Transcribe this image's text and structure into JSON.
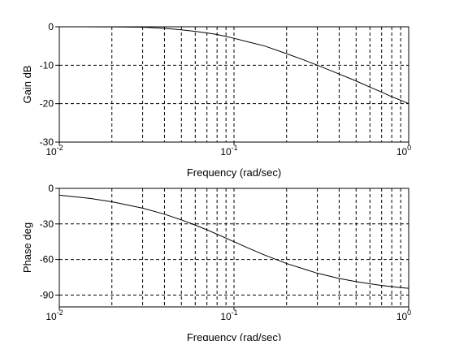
{
  "chart_data": [
    {
      "type": "line",
      "xscale": "log",
      "xlim": [
        0.01,
        1
      ],
      "ylim": [
        -30,
        0
      ],
      "xlabel": "Frequency (rad/sec)",
      "ylabel": "Gain dB",
      "xticks": [
        {
          "base": "10",
          "exp": "-2",
          "value": 0.01
        },
        {
          "base": "10",
          "exp": "-1",
          "value": 0.1
        },
        {
          "base": "10",
          "exp": "0",
          "value": 1
        }
      ],
      "yticks": [
        {
          "label": "0",
          "value": 0
        },
        {
          "label": "-10",
          "value": -10
        },
        {
          "label": "-20",
          "value": -20
        },
        {
          "label": "-30",
          "value": -30
        }
      ],
      "grid": true,
      "series": [
        {
          "x": [
            0.014,
            0.02,
            0.03,
            0.04,
            0.05,
            0.06,
            0.07,
            0.08,
            0.09,
            0.1,
            0.12,
            0.15,
            0.2,
            0.25,
            0.3,
            0.4,
            0.5,
            0.6,
            0.7,
            0.8,
            0.9,
            1.0
          ],
          "y": [
            -0.01,
            -0.02,
            -0.1,
            -0.4,
            -0.8,
            -1.2,
            -1.6,
            -2.0,
            -2.5,
            -3.0,
            -3.9,
            -5.0,
            -7.0,
            -8.6,
            -10.0,
            -12.3,
            -14.1,
            -15.7,
            -17.0,
            -18.2,
            -19.1,
            -20.0
          ]
        }
      ]
    },
    {
      "type": "line",
      "xscale": "log",
      "xlim": [
        0.01,
        1
      ],
      "ylim": [
        -100,
        0
      ],
      "xlabel": "Frequency (rad/sec)",
      "ylabel": "Phase deg",
      "xticks": [
        {
          "base": "10",
          "exp": "-2",
          "value": 0.01
        },
        {
          "base": "10",
          "exp": "-1",
          "value": 0.1
        },
        {
          "base": "10",
          "exp": "0",
          "value": 1
        }
      ],
      "yticks": [
        {
          "label": "0",
          "value": 0
        },
        {
          "label": "-30",
          "value": -30
        },
        {
          "label": "-60",
          "value": -60
        },
        {
          "label": "-90",
          "value": -90
        }
      ],
      "grid": true,
      "series": [
        {
          "x": [
            0.01,
            0.015,
            0.02,
            0.03,
            0.04,
            0.05,
            0.06,
            0.07,
            0.08,
            0.1,
            0.12,
            0.15,
            0.2,
            0.3,
            0.4,
            0.5,
            0.6,
            0.7,
            0.8,
            0.9,
            1.0
          ],
          "y": [
            -5.7,
            -8.5,
            -11.3,
            -16.7,
            -21.8,
            -26.6,
            -31.0,
            -35.0,
            -38.7,
            -45.0,
            -50.2,
            -56.3,
            -63.4,
            -71.6,
            -76.0,
            -78.7,
            -80.5,
            -81.9,
            -82.9,
            -83.7,
            -84.3
          ]
        }
      ]
    }
  ]
}
